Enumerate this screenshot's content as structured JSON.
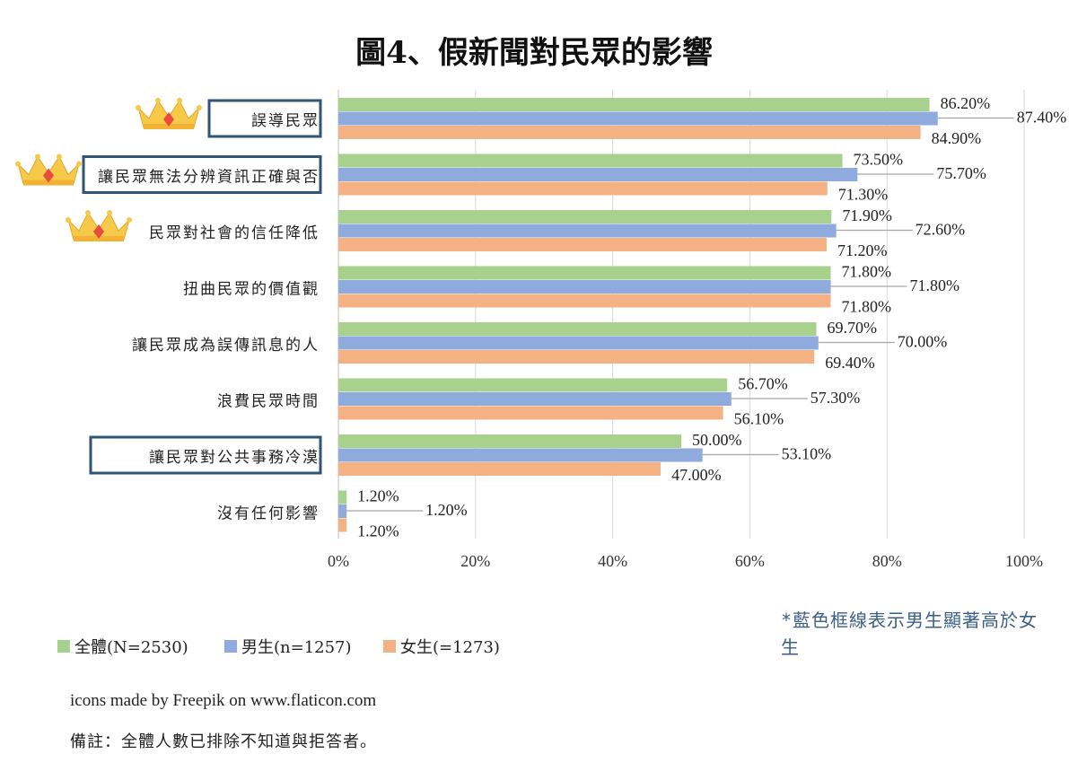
{
  "chart_data": {
    "type": "bar",
    "orientation": "horizontal",
    "title": "圖4、假新聞對民眾的影響",
    "categories": [
      "誤導民眾",
      "讓民眾無法分辨資訊正確與否",
      "民眾對社會的信任降低",
      "扭曲民眾的價值觀",
      "讓民眾成為誤傳訊息的人",
      "浪費民眾時間",
      "讓民眾對公共事務冷漠",
      "沒有任何影響"
    ],
    "category_labels_visible": [
      "誤導民眾",
      "讓民眾無法分辨資訊正確與否",
      "民眾對社會的信任降低",
      "扭曲民眾的價值觀",
      "讓民眾成為誤傳訊息的人",
      "浪費民眾時間",
      "讓民眾對公共事務冷漠",
      "沒有任何影響"
    ],
    "series": [
      {
        "name": "全體(N=2530)",
        "color": "#a9d18e",
        "values": [
          86.2,
          73.5,
          71.9,
          71.8,
          69.7,
          56.7,
          50.0,
          1.2
        ],
        "labels": [
          "86.20%",
          "73.50%",
          "71.90%",
          "71.80%",
          "69.70%",
          "56.70%",
          "50.00%",
          "1.20%"
        ]
      },
      {
        "name": "男生(n=1257)",
        "color": "#8faadc",
        "values": [
          87.4,
          75.7,
          72.6,
          71.8,
          70.0,
          57.3,
          53.1,
          1.2
        ],
        "labels": [
          "87.40%",
          "75.70%",
          "72.60%",
          "71.80%",
          "70.00%",
          "57.30%",
          "53.10%",
          "1.20%"
        ]
      },
      {
        "name": "女生(=1273)",
        "color": "#f4b183",
        "values": [
          84.9,
          71.3,
          71.2,
          71.8,
          69.4,
          56.1,
          47.0,
          1.2
        ],
        "labels": [
          "84.90%",
          "71.30%",
          "71.20%",
          "71.80%",
          "69.40%",
          "56.10%",
          "47.00%",
          "1.20%"
        ]
      }
    ],
    "xlim": [
      0,
      100
    ],
    "xticks": [
      0,
      20,
      40,
      60,
      80,
      100
    ],
    "xtick_labels": [
      "0%",
      "20%",
      "40%",
      "60%",
      "80%",
      "100%"
    ],
    "grid": true,
    "legend": "bottom-left",
    "highlighted_categories": [
      0,
      1,
      6
    ],
    "crown_categories": [
      0,
      1,
      2
    ]
  },
  "notes": {
    "blue_box_note": "*藍色框線表示男生顯著高於女生",
    "credit": "icons made by Freepik on www.flaticon.com",
    "remark": "備註：全體人數已排除不知道與拒答者。"
  },
  "colors": {
    "grid": "#d9d9d9",
    "highlight_box": "#2f5577",
    "note_text": "#3a5f86",
    "crown_gold": "#f7c948",
    "crown_gem": "#e94b3c"
  }
}
